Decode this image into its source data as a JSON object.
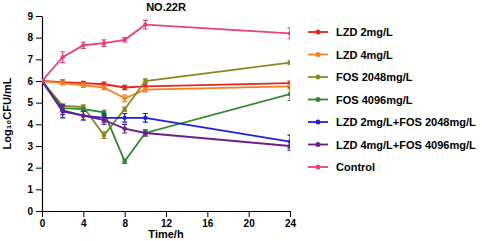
{
  "chart_data": {
    "type": "line",
    "title": "NO.22R",
    "x_label": "Time/h",
    "y_label": "Log₁₀CFU/mL",
    "x": [
      0,
      2,
      4,
      6,
      8,
      10,
      24
    ],
    "xlim": [
      0,
      24
    ],
    "xticks": [
      0,
      4,
      8,
      12,
      16,
      20,
      24
    ],
    "ylim": [
      0,
      9
    ],
    "yticks": [
      0,
      1,
      2,
      3,
      4,
      5,
      6,
      7,
      8,
      9
    ],
    "grid": false,
    "legend": "right",
    "marker": "circle",
    "series": [
      {
        "name": "LZD 2mg/L",
        "color": "#e8231e",
        "values": [
          6.0,
          5.95,
          5.9,
          5.85,
          5.7,
          5.75,
          5.9
        ],
        "errors": [
          0.05,
          0.1,
          0.08,
          0.1,
          0.1,
          0.12,
          0.1
        ]
      },
      {
        "name": "LZD 4mg/L",
        "color": "#f5821f",
        "values": [
          6.0,
          5.9,
          5.8,
          5.7,
          5.2,
          5.6,
          5.75
        ],
        "errors": [
          0.05,
          0.08,
          0.1,
          0.1,
          0.15,
          0.1,
          0.1
        ]
      },
      {
        "name": "FOS 2048mg/L",
        "color": "#8b8a22",
        "values": [
          6.0,
          4.85,
          4.8,
          3.5,
          4.7,
          6.0,
          6.85
        ],
        "errors": [
          0.05,
          0.1,
          0.1,
          0.15,
          0.1,
          0.1,
          0.08
        ]
      },
      {
        "name": "FOS 4096mg/L",
        "color": "#2e8b2e",
        "values": [
          6.0,
          4.75,
          4.7,
          4.55,
          2.3,
          3.6,
          5.4
        ],
        "errors": [
          0.05,
          0.12,
          0.1,
          0.1,
          0.1,
          0.1,
          0.3
        ]
      },
      {
        "name": "LZD 2mg/L+FOS 2048mg/L",
        "color": "#1f1fe0",
        "values": [
          6.0,
          4.6,
          4.4,
          4.3,
          4.3,
          4.3,
          3.2
        ],
        "errors": [
          0.05,
          0.3,
          0.2,
          0.2,
          0.2,
          0.2,
          0.3
        ]
      },
      {
        "name": "LZD 4mg/L+FOS 4096mg/L",
        "color": "#6a1f8a",
        "values": [
          6.0,
          4.65,
          4.4,
          4.2,
          3.8,
          3.6,
          3.0
        ],
        "errors": [
          0.05,
          0.2,
          0.2,
          0.2,
          0.2,
          0.15,
          0.2
        ]
      },
      {
        "name": "Control",
        "color": "#e8407c",
        "values": [
          6.0,
          7.1,
          7.65,
          7.75,
          7.9,
          8.6,
          8.2
        ],
        "errors": [
          0.05,
          0.25,
          0.15,
          0.15,
          0.1,
          0.2,
          0.25
        ]
      }
    ]
  }
}
